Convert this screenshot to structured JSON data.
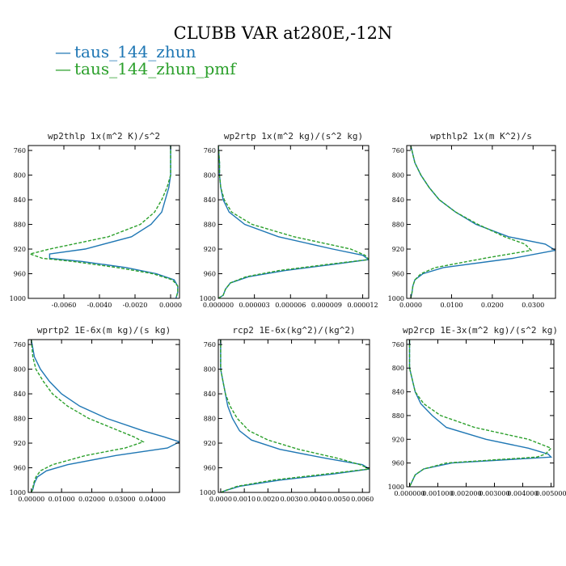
{
  "title": "CLUBB VAR at280E,-12N",
  "legend": [
    {
      "label": "taus_144_zhun",
      "color": "#1f77b4"
    },
    {
      "label": "taus_144_zhun_pmf",
      "color": "#2ca02c"
    }
  ],
  "colors": {
    "series_0": "#1f77b4",
    "series_1": "#2ca02c"
  },
  "chart_data": [
    {
      "type": "line",
      "title": "wp2thlp  1x(m^2 K)/s^2",
      "xlim": [
        -0.008,
        0.0005
      ],
      "ylim": [
        1000,
        752
      ],
      "x_ticks": [
        -0.006,
        -0.004,
        -0.002,
        0.0
      ],
      "x_tick_labels": [
        "-0.0060",
        "-0.0040",
        "-0.0020",
        "0.0000"
      ],
      "y_ticks": [
        760,
        800,
        840,
        880,
        920,
        960,
        1000
      ],
      "y_tick_labels": [
        "760",
        "800",
        "840",
        "880",
        "920",
        "960",
        "1000"
      ],
      "y": [
        752,
        780,
        800,
        820,
        840,
        860,
        880,
        900,
        920,
        928,
        935,
        940,
        950,
        960,
        970,
        980,
        990,
        1000
      ],
      "series": [
        {
          "name": "taus_144_zhun",
          "x": [
            0.0,
            0.0,
            0.0,
            -0.0001,
            -0.0003,
            -0.0005,
            -0.0011,
            -0.0022,
            -0.0048,
            -0.0068,
            -0.0068,
            -0.005,
            -0.0025,
            -0.0008,
            0.0002,
            0.0004,
            0.0004,
            0.0003
          ]
        },
        {
          "name": "taus_144_zhun_pmf",
          "x": [
            0.0,
            0.0,
            0.0,
            -0.0002,
            -0.0005,
            -0.0009,
            -0.0017,
            -0.0035,
            -0.0068,
            -0.0079,
            -0.0072,
            -0.0055,
            -0.003,
            -0.001,
            0.0001,
            0.0004,
            0.0004,
            0.0003
          ]
        }
      ]
    },
    {
      "type": "line",
      "title": "wp2rtp  1x(m^2 kg)/(s^2 kg)",
      "xlim": [
        0,
        1.25e-05
      ],
      "ylim": [
        1000,
        752
      ],
      "x_ticks": [
        0,
        3e-06,
        6e-06,
        9e-06,
        1.2e-05
      ],
      "x_tick_labels": [
        "0.000000",
        "0.000003",
        "0.000006",
        "0.000009",
        "0.000012"
      ],
      "y_ticks": [
        760,
        800,
        840,
        880,
        920,
        960,
        1000
      ],
      "y_tick_labels": [
        "760",
        "800",
        "840",
        "880",
        "920",
        "960",
        "1000"
      ],
      "y": [
        752,
        780,
        800,
        820,
        840,
        860,
        880,
        900,
        920,
        930,
        937,
        945,
        955,
        965,
        975,
        985,
        995,
        1000
      ],
      "series": [
        {
          "name": "taus_144_zhun",
          "x": [
            0.0,
            1e-07,
            1e-07,
            2e-07,
            4e-07,
            9e-07,
            2.2e-06,
            5e-06,
            9.5e-06,
            1.2e-05,
            1.25e-05,
            9.5e-06,
            5.5e-06,
            2.5e-06,
            1e-06,
            6e-07,
            4e-07,
            0.0
          ]
        },
        {
          "name": "taus_144_zhun_pmf",
          "x": [
            0.0,
            1e-07,
            1e-07,
            2e-07,
            5e-07,
            1.1e-06,
            2.8e-06,
            6.3e-06,
            1.1e-05,
            1.22e-05,
            1.25e-05,
            9e-06,
            5e-06,
            2.3e-06,
            1e-06,
            6e-07,
            4e-07,
            0.0
          ]
        }
      ]
    },
    {
      "type": "line",
      "title": "wpthlp2  1x(m K^2)/s",
      "xlim": [
        -0.001,
        0.0355
      ],
      "ylim": [
        1000,
        752
      ],
      "x_ticks": [
        0.0,
        0.01,
        0.02,
        0.03
      ],
      "x_tick_labels": [
        "0.0000",
        "0.0100",
        "0.0200",
        "0.0300"
      ],
      "y_ticks": [
        760,
        800,
        840,
        880,
        920,
        960,
        1000
      ],
      "y_tick_labels": [
        "760",
        "800",
        "840",
        "880",
        "920",
        "960",
        "1000"
      ],
      "y": [
        752,
        780,
        800,
        820,
        840,
        860,
        880,
        900,
        912,
        922,
        935,
        950,
        960,
        970,
        980,
        990,
        1000
      ],
      "series": [
        {
          "name": "taus_144_zhun",
          "x": [
            0.0,
            0.001,
            0.0025,
            0.0045,
            0.007,
            0.011,
            0.016,
            0.024,
            0.033,
            0.0355,
            0.025,
            0.008,
            0.003,
            0.001,
            0.0005,
            0.0003,
            0.0
          ]
        },
        {
          "name": "taus_144_zhun_pmf",
          "x": [
            0.0,
            0.001,
            0.0025,
            0.0045,
            0.007,
            0.011,
            0.0165,
            0.023,
            0.028,
            0.0295,
            0.018,
            0.006,
            0.0025,
            0.001,
            0.0005,
            0.0003,
            0.0
          ]
        }
      ]
    },
    {
      "type": "line",
      "title": "wprtp2  1E-6x(m kg)/(s kg)",
      "xlim": [
        -0.001,
        0.049
      ],
      "ylim": [
        1000,
        752
      ],
      "x_ticks": [
        0.0,
        0.01,
        0.02,
        0.03,
        0.04
      ],
      "x_tick_labels": [
        "0.00000",
        "0.01000",
        "0.02000",
        "0.03000",
        "0.04000"
      ],
      "y_ticks": [
        760,
        800,
        840,
        880,
        920,
        960,
        1000
      ],
      "y_tick_labels": [
        "760",
        "800",
        "840",
        "880",
        "920",
        "960",
        "1000"
      ],
      "y": [
        752,
        780,
        800,
        820,
        840,
        860,
        880,
        900,
        910,
        918,
        928,
        940,
        955,
        965,
        975,
        985,
        995,
        1000
      ],
      "series": [
        {
          "name": "taus_144_zhun",
          "x": [
            0.0,
            0.001,
            0.003,
            0.006,
            0.01,
            0.016,
            0.025,
            0.037,
            0.044,
            0.049,
            0.045,
            0.028,
            0.012,
            0.005,
            0.002,
            0.001,
            0.0005,
            0.0
          ]
        },
        {
          "name": "taus_144_zhun_pmf",
          "x": [
            0.0,
            0.0005,
            0.0015,
            0.004,
            0.007,
            0.012,
            0.019,
            0.029,
            0.034,
            0.037,
            0.031,
            0.018,
            0.007,
            0.003,
            0.0015,
            0.0008,
            0.0004,
            0.0
          ]
        }
      ]
    },
    {
      "type": "line",
      "title": "rcp2  1E-6x(kg^2)/(kg^2)",
      "xlim": [
        -0.0001,
        0.0063
      ],
      "ylim": [
        1000,
        752
      ],
      "x_ticks": [
        0.0,
        0.001,
        0.002,
        0.003,
        0.004,
        0.005,
        0.006
      ],
      "x_tick_labels": [
        "0.0000",
        "0.0010",
        "0.0020",
        "0.0030",
        "0.0040",
        "0.0050",
        "0.0060"
      ],
      "y_ticks": [
        760,
        800,
        840,
        880,
        920,
        960,
        1000
      ],
      "y_tick_labels": [
        "760",
        "800",
        "840",
        "880",
        "920",
        "960",
        "1000"
      ],
      "y": [
        752,
        780,
        800,
        820,
        840,
        860,
        880,
        900,
        915,
        930,
        945,
        955,
        962,
        970,
        980,
        990,
        997,
        1000
      ],
      "series": [
        {
          "name": "taus_144_zhun",
          "x": [
            0.0,
            0.0,
            0.0,
            0.0001,
            0.0002,
            0.0003,
            0.0005,
            0.0008,
            0.0013,
            0.0025,
            0.0045,
            0.006,
            0.0063,
            0.0048,
            0.0025,
            0.0008,
            0.0002,
            0.0
          ]
        },
        {
          "name": "taus_144_zhun_pmf",
          "x": [
            0.0,
            0.0,
            0.0,
            0.0001,
            0.0002,
            0.0004,
            0.0007,
            0.0012,
            0.002,
            0.0033,
            0.005,
            0.0059,
            0.0063,
            0.0045,
            0.0022,
            0.0007,
            0.0002,
            0.0
          ]
        }
      ]
    },
    {
      "type": "line",
      "title": "wp2rcp  1E-3x(m^2 kg)/(s^2 kg)",
      "xlim": [
        -0.0001,
        0.0051
      ],
      "ylim": [
        1000,
        752
      ],
      "x_ticks": [
        0.0,
        0.001,
        0.002,
        0.003,
        0.004,
        0.005
      ],
      "x_tick_labels": [
        "0.000000",
        "0.001000",
        "0.002000",
        "0.003000",
        "0.004000",
        "0.005000"
      ],
      "y_ticks": [
        760,
        800,
        840,
        880,
        920,
        960,
        1000
      ],
      "y_tick_labels": [
        "760",
        "800",
        "840",
        "880",
        "920",
        "960",
        "1000"
      ],
      "y": [
        752,
        780,
        800,
        820,
        840,
        860,
        880,
        900,
        920,
        935,
        945,
        950,
        960,
        970,
        980,
        990,
        1000
      ],
      "series": [
        {
          "name": "taus_144_zhun",
          "x": [
            0.0,
            0.0,
            0.0,
            0.0001,
            0.0002,
            0.0004,
            0.0008,
            0.0013,
            0.0027,
            0.0042,
            0.0049,
            0.005,
            0.0015,
            0.0005,
            0.0002,
            0.0001,
            0.0
          ]
        },
        {
          "name": "taus_144_zhun_pmf",
          "x": [
            0.0,
            0.0,
            0.0,
            0.0001,
            0.0002,
            0.0005,
            0.0011,
            0.0023,
            0.0042,
            0.005,
            0.0048,
            0.0045,
            0.0013,
            0.0005,
            0.0002,
            0.0001,
            0.0
          ]
        }
      ]
    }
  ]
}
